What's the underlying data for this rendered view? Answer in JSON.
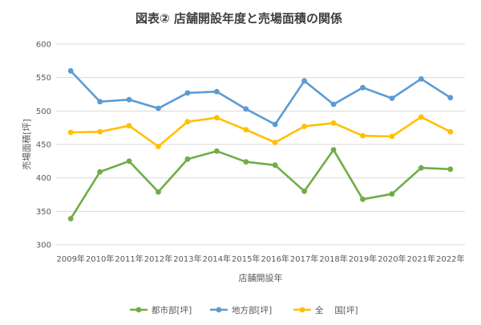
{
  "chart_data": {
    "type": "line",
    "title": "図表② 店舗開設年度と売場面積の関係",
    "xlabel": "店舗開設年",
    "ylabel": "売場面積[坪]",
    "categories": [
      "2009年",
      "2010年",
      "2011年",
      "2012年",
      "2013年",
      "2014年",
      "2015年",
      "2016年",
      "2017年",
      "2018年",
      "2019年",
      "2020年",
      "2021年",
      "2022年"
    ],
    "ylim": [
      300,
      600
    ],
    "yticks": [
      300,
      350,
      400,
      450,
      500,
      550,
      600
    ],
    "grid": true,
    "legend_position": "bottom",
    "series": [
      {
        "name": "都市部[坪]",
        "color": "#70AD47",
        "values": [
          339,
          409,
          425,
          379,
          428,
          440,
          424,
          419,
          380,
          442,
          368,
          376,
          415,
          413
        ]
      },
      {
        "name": "地方部[坪]",
        "color": "#5B9BD5",
        "values": [
          560,
          514,
          517,
          504,
          527,
          529,
          503,
          480,
          545,
          510,
          535,
          519,
          548,
          520
        ]
      },
      {
        "name": "全　 国[坪]",
        "color": "#FFC000",
        "values": [
          468,
          469,
          478,
          447,
          484,
          490,
          472,
          453,
          477,
          482,
          463,
          462,
          491,
          469
        ]
      }
    ]
  }
}
